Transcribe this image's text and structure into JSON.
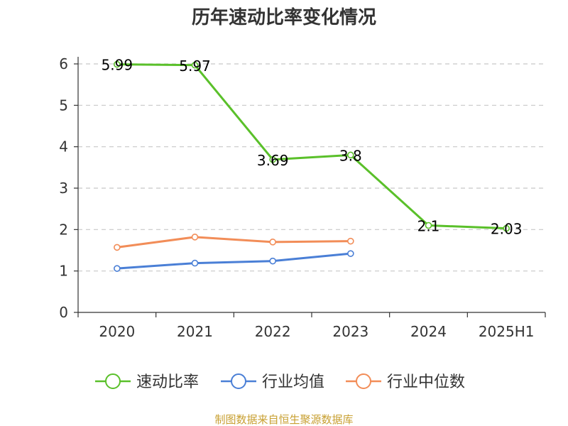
{
  "chart_data": {
    "type": "line",
    "title": "历年速动比率变化情况",
    "categories": [
      "2020",
      "2021",
      "2022",
      "2023",
      "2024",
      "2025H1"
    ],
    "y_ticks": [
      0,
      1,
      2,
      3,
      4,
      5,
      6
    ],
    "ylim": [
      0,
      6
    ],
    "grid": true,
    "legend_position": "bottom",
    "series": [
      {
        "name": "速动比率",
        "color": "#5ac02a",
        "values": [
          5.99,
          5.97,
          3.69,
          3.8,
          2.1,
          2.03
        ],
        "labels": [
          "5.99",
          "5.97",
          "3.69",
          "3.8",
          "2.1",
          "2.03"
        ]
      },
      {
        "name": "行业均值",
        "color": "#4a7fd6",
        "values": [
          1.06,
          1.19,
          1.24,
          1.42,
          null,
          null
        ]
      },
      {
        "name": "行业中位数",
        "color": "#f28d58",
        "values": [
          1.57,
          1.82,
          1.7,
          1.72,
          null,
          null
        ]
      }
    ],
    "source": "制图数据来自恒生聚源数据库"
  }
}
